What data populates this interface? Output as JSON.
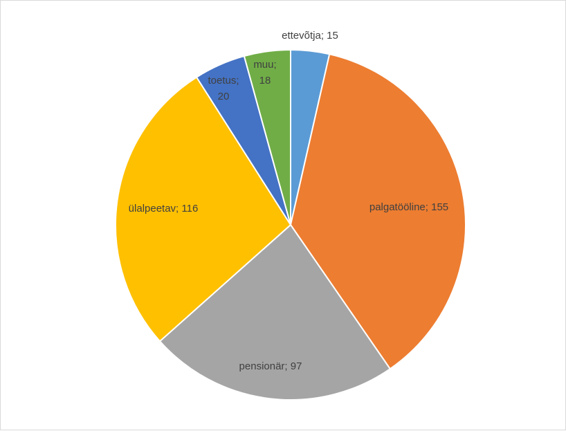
{
  "chart_data": {
    "type": "pie",
    "categories": [
      "ettevõtja",
      "palgatööline",
      "pensionär",
      "ülalpeetav",
      "toetus",
      "muu"
    ],
    "values": [
      15,
      155,
      97,
      116,
      20,
      18
    ],
    "colors": [
      "#5b9bd5",
      "#ed7d31",
      "#a5a5a5",
      "#ffc000",
      "#4472c4",
      "#70ad47"
    ],
    "start_angle_deg": 0,
    "direction": "clockwise",
    "data_labels": [
      [
        "ettevõtja; 15"
      ],
      [
        "palgatööline; 155"
      ],
      [
        "pensionär; 97"
      ],
      [
        "ülalpeetav; 116"
      ],
      [
        "toetus;",
        "20"
      ],
      [
        "muu;",
        "18"
      ]
    ],
    "legend": "none"
  }
}
